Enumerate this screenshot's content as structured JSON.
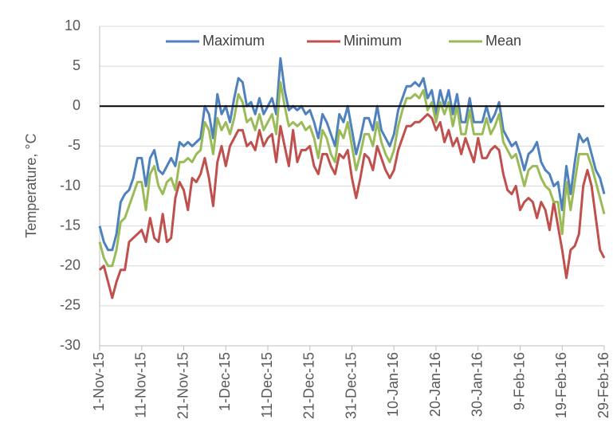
{
  "chart_data": {
    "type": "line",
    "y_label": "Temperature, °C",
    "categories": [
      "1-Nov-15",
      null,
      null,
      null,
      null,
      null,
      null,
      null,
      null,
      null,
      "11-Nov-15",
      null,
      null,
      null,
      null,
      null,
      null,
      null,
      null,
      null,
      "21-Nov-15",
      null,
      null,
      null,
      null,
      null,
      null,
      null,
      null,
      null,
      "1-Dec-15",
      null,
      null,
      null,
      null,
      null,
      null,
      null,
      null,
      null,
      "11-Dec-15",
      null,
      null,
      null,
      null,
      null,
      null,
      null,
      null,
      null,
      "21-Dec-15",
      null,
      null,
      null,
      null,
      null,
      null,
      null,
      null,
      null,
      "31-Dec-15",
      null,
      null,
      null,
      null,
      null,
      null,
      null,
      null,
      null,
      "10-Jan-16",
      null,
      null,
      null,
      null,
      null,
      null,
      null,
      null,
      null,
      "20-Jan-16",
      null,
      null,
      null,
      null,
      null,
      null,
      null,
      null,
      null,
      "30-Jan-16",
      null,
      null,
      null,
      null,
      null,
      null,
      null,
      null,
      null,
      "9-Feb-16",
      null,
      null,
      null,
      null,
      null,
      null,
      null,
      null,
      null,
      "19-Feb-16",
      null,
      null,
      null,
      null,
      null,
      null,
      null,
      null,
      null,
      "29-Feb-16"
    ],
    "series": [
      {
        "name": "Maximum",
        "color": "#4f81bd",
        "values": [
          -15,
          -17,
          -18,
          -18,
          -16,
          -12,
          -11,
          -10.5,
          -9,
          -6.5,
          -6.5,
          -10,
          -6.5,
          -5.5,
          -8,
          -8.5,
          -7.5,
          -6.5,
          -7.5,
          -4.5,
          -5,
          -4.5,
          -5,
          -4.5,
          -4,
          0,
          -1,
          -4,
          1.5,
          -1,
          0,
          -2,
          1,
          3.5,
          3,
          0,
          0.5,
          -1,
          1,
          -1,
          0,
          1,
          -1,
          6,
          2,
          -0.5,
          0,
          -0.5,
          0,
          -1,
          -0.5,
          -2,
          -4,
          -1,
          -2,
          -3.5,
          -5,
          -1,
          -2,
          0,
          -3,
          -6,
          -4,
          -1.5,
          -1.5,
          -3,
          0,
          -3,
          -4,
          -5,
          -3.5,
          -0.5,
          1,
          2.5,
          2.5,
          3,
          2.5,
          3.5,
          1,
          2,
          -1,
          2,
          0,
          2,
          -1,
          1.5,
          -2,
          -2,
          1,
          -2,
          -2,
          -2,
          0,
          -2,
          -1,
          0.5,
          -3,
          -4,
          -5,
          -4.5,
          -6,
          -8,
          -6,
          -5.5,
          -4.5,
          -7,
          -8,
          -8.5,
          -10,
          -9.5,
          -13,
          -7.5,
          -11,
          -7,
          -3.5,
          -4.5,
          -4,
          -6,
          -8,
          -9,
          -11
        ]
      },
      {
        "name": "Minimum",
        "color": "#c0504d",
        "values": [
          -20.5,
          -20,
          -22,
          -24,
          -22,
          -20.5,
          -20.5,
          -17,
          -16.5,
          -16,
          -15.5,
          -17,
          -14,
          -16.5,
          -17,
          -13.5,
          -17,
          -16.5,
          -11.5,
          -9.5,
          -10.5,
          -13,
          -9,
          -9.5,
          -8.5,
          -6.5,
          -9,
          -12.5,
          -7,
          -5,
          -7.5,
          -5,
          -4,
          -3,
          -3,
          -5,
          -4.5,
          -5.5,
          -3,
          -5,
          -4,
          -3.5,
          -7,
          -2.5,
          -5,
          -7.5,
          -3,
          -7,
          -5.5,
          -5.5,
          -5,
          -7.5,
          -8.5,
          -6,
          -6,
          -7.5,
          -8.5,
          -6,
          -6.5,
          -5.5,
          -9,
          -11.5,
          -9,
          -6,
          -6.5,
          -8,
          -5,
          -6.5,
          -8,
          -9,
          -8,
          -5.5,
          -4,
          -2.5,
          -2.5,
          -2,
          -2,
          -1.5,
          -1,
          -1.5,
          -3,
          -2,
          -4.5,
          -3,
          -5,
          -4,
          -6,
          -4,
          -5.5,
          -7,
          -4,
          -6.5,
          -6.5,
          -5.5,
          -5,
          -5.5,
          -8.5,
          -10.5,
          -11,
          -10,
          -13,
          -12,
          -11.5,
          -12,
          -14,
          -12,
          -13,
          -15.5,
          -12,
          -15,
          -18,
          -21.5,
          -18,
          -17.5,
          -16,
          -10,
          -8,
          -10,
          -14,
          -18,
          -19
        ]
      },
      {
        "name": "Mean",
        "color": "#9bbb59",
        "values": [
          -17,
          -19,
          -20,
          -20,
          -18,
          -14.5,
          -14,
          -12.5,
          -11,
          -9.5,
          -9.5,
          -13,
          -8.5,
          -7.5,
          -10,
          -11,
          -9.5,
          -9,
          -10.5,
          -7,
          -7,
          -6.5,
          -7,
          -6,
          -5.5,
          -2,
          -3,
          -6,
          -1.5,
          -3,
          -2,
          -3.5,
          -1.5,
          1.5,
          0.5,
          -2,
          -1.5,
          -3,
          -1,
          -3,
          -2,
          -1,
          -3.5,
          3,
          0,
          -2.5,
          -2,
          -2.5,
          -2,
          -3,
          -2.5,
          -4,
          -6.5,
          -3,
          -4,
          -6,
          -7,
          -3,
          -4,
          -2,
          -5,
          -8,
          -6,
          -3.5,
          -3.5,
          -5,
          -2,
          -4.5,
          -6,
          -7,
          -5.5,
          -2.5,
          -0.5,
          1,
          1,
          1.5,
          1,
          2,
          -0.5,
          0.5,
          -2,
          0.5,
          -1,
          0.5,
          -2.5,
          0,
          -3.5,
          -3.5,
          -0.5,
          -3.5,
          -3.5,
          -3.5,
          -1.5,
          -3.5,
          -2.5,
          -1,
          -4.5,
          -5.5,
          -6.5,
          -6,
          -8,
          -10,
          -8,
          -7.5,
          -7.5,
          -9,
          -10,
          -10.5,
          -12,
          -12,
          -16,
          -9.5,
          -13,
          -9.5,
          -6,
          -6,
          -6,
          -7.5,
          -9.5,
          -11.5,
          -13.5
        ]
      }
    ],
    "ylim": [
      -30,
      10
    ],
    "yticks": [
      -30,
      -25,
      -20,
      -15,
      -10,
      -5,
      0,
      5,
      10
    ],
    "grid": true,
    "legend": "top"
  }
}
